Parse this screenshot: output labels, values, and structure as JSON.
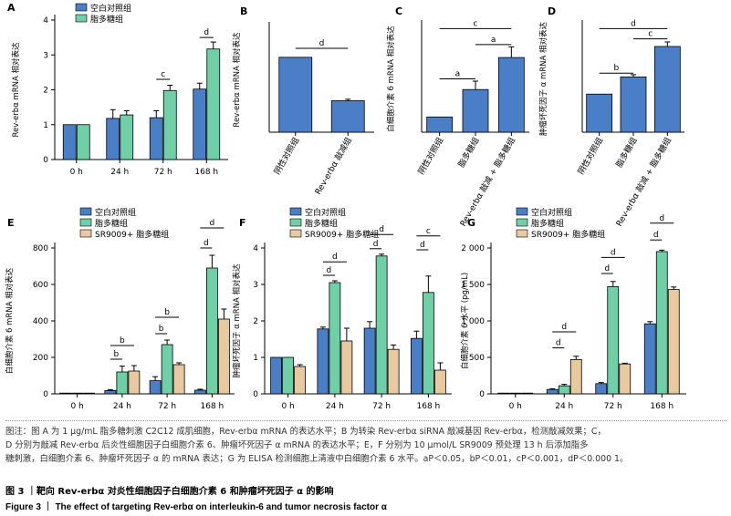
{
  "colors": {
    "blue": "#4a7ec7",
    "green": "#6fd0a8",
    "tan": "#e9c9a0"
  },
  "chart_data": [
    {
      "panel": "A",
      "type": "bar",
      "ylabel": "Rev-erbα mRNA 相对表达",
      "ylim": [
        0,
        4
      ],
      "yticks": [
        "0",
        "1",
        "2",
        "3",
        "4"
      ],
      "categories": [
        "0 h",
        "24 h",
        "72 h",
        "168 h"
      ],
      "series": [
        {
          "name": "空白对照组",
          "color": "#4a7ec7",
          "values": [
            1.0,
            1.18,
            1.2,
            2.02
          ],
          "errors": [
            0,
            0.25,
            0.2,
            0.17
          ]
        },
        {
          "name": "脂多糖组",
          "color": "#6fd0a8",
          "values": [
            1.0,
            1.28,
            1.98,
            3.17
          ],
          "errors": [
            0,
            0.12,
            0.15,
            0.2
          ]
        }
      ],
      "legend": "top-left",
      "annotations": [
        {
          "label": "c",
          "x1": 2,
          "s1": 0,
          "x2": 2,
          "s2": 1,
          "y": 2.3
        },
        {
          "label": "d",
          "x1": 3,
          "s1": 0,
          "x2": 3,
          "s2": 1,
          "y": 3.5
        }
      ]
    },
    {
      "panel": "B",
      "type": "bar",
      "ylabel": "Rev-erbα mRNA 相对表达",
      "ylim": [
        0,
        1.4
      ],
      "categories": [
        "阴性对照组",
        "Rev-erbα 敲减组"
      ],
      "series": [
        {
          "color": "#4a7ec7",
          "values": [
            1.0,
            0.42
          ],
          "errors": [
            0,
            0.02
          ]
        }
      ],
      "annotations": [
        {
          "label": "d",
          "x1": 0,
          "s1": 0,
          "x2": 1,
          "s2": 0,
          "y": 1.12
        }
      ]
    },
    {
      "panel": "C",
      "type": "bar",
      "ylabel": "白细胞介素 6 mRNA 相对表达",
      "ylim": [
        0,
        7
      ],
      "categories": [
        "阴性对照组",
        "脂多糖组",
        "Rev-erbα 敲减 + 脂多糖组"
      ],
      "series": [
        {
          "color": "#4a7ec7",
          "values": [
            1.0,
            2.8,
            4.9
          ],
          "errors": [
            0,
            0.55,
            0.7
          ]
        }
      ],
      "annotations": [
        {
          "label": "a",
          "x1": 0,
          "s1": 0,
          "x2": 1,
          "s2": 0,
          "y": 3.5
        },
        {
          "label": "a",
          "x1": 1,
          "s1": 0,
          "x2": 2,
          "s2": 0,
          "y": 5.75
        },
        {
          "label": "c",
          "x1": 0,
          "s1": 0,
          "x2": 2,
          "s2": 0,
          "y": 6.8
        }
      ]
    },
    {
      "panel": "D",
      "type": "bar",
      "ylabel": "肿瘤坏死因子 α mRNA 相对表达",
      "ylim": [
        0,
        2.8
      ],
      "categories": [
        "阴性对照组",
        "脂多糖组",
        "Rev-erbα 敲减 + 脂多糖组"
      ],
      "series": [
        {
          "color": "#4a7ec7",
          "values": [
            1.0,
            1.45,
            2.25
          ],
          "errors": [
            0,
            0.06,
            0.12
          ]
        }
      ],
      "annotations": [
        {
          "label": "b",
          "x1": 0,
          "s1": 0,
          "x2": 1,
          "s2": 0,
          "y": 1.55
        },
        {
          "label": "c",
          "x1": 1,
          "s1": 0,
          "x2": 2,
          "s2": 0,
          "y": 2.45
        },
        {
          "label": "d",
          "x1": 0,
          "s1": 0,
          "x2": 2,
          "s2": 0,
          "y": 2.72
        }
      ]
    },
    {
      "panel": "E",
      "type": "bar",
      "ylabel": "白细胞介素 6 mRNA 相对表达",
      "ylim": [
        0,
        800
      ],
      "yticks": [
        "0",
        "200",
        "400",
        "600",
        "800"
      ],
      "categories": [
        "0 h",
        "24 h",
        "72 h",
        "168 h"
      ],
      "series": [
        {
          "name": "空白对照组",
          "color": "#4a7ec7",
          "values": [
            1,
            18,
            72,
            20
          ],
          "errors": [
            0,
            5,
            22,
            5
          ]
        },
        {
          "name": "脂多糖组",
          "color": "#6fd0a8",
          "values": [
            1,
            120,
            270,
            690
          ],
          "errors": [
            0,
            32,
            25,
            70
          ]
        },
        {
          "name": "SR9009+ 脂多糖组",
          "color": "#e9c9a0",
          "values": [
            1,
            125,
            160,
            410
          ],
          "errors": [
            0,
            30,
            10,
            55
          ]
        }
      ],
      "legend": "top-left",
      "annotations": [
        {
          "label": "b",
          "x1": 1,
          "s1": 0,
          "x2": 1,
          "s2": 2,
          "y": 265
        },
        {
          "label": "b",
          "x1": 1,
          "s1": 0,
          "x2": 1,
          "s2": 1,
          "y": 190
        },
        {
          "label": "b",
          "x1": 2,
          "s1": 0,
          "x2": 2,
          "s2": 2,
          "y": 420
        },
        {
          "label": "b",
          "x1": 2,
          "s1": 0,
          "x2": 2,
          "s2": 1,
          "y": 330
        },
        {
          "label": "d",
          "x1": 3,
          "s1": 0,
          "x2": 3,
          "s2": 2,
          "y": 910
        },
        {
          "label": "d",
          "x1": 3,
          "s1": 0,
          "x2": 3,
          "s2": 1,
          "y": 800
        }
      ]
    },
    {
      "panel": "F",
      "type": "bar",
      "ylabel": "肿瘤坏死因子 α mRNA 相对表达",
      "ylim": [
        0,
        4
      ],
      "yticks": [
        "0",
        "1",
        "2",
        "3",
        "4"
      ],
      "categories": [
        "0 h",
        "24 h",
        "72 h",
        "168 h"
      ],
      "series": [
        {
          "name": "空白对照组",
          "color": "#4a7ec7",
          "values": [
            1.0,
            1.78,
            1.8,
            1.52
          ],
          "errors": [
            0,
            0.05,
            0.18,
            0.2
          ]
        },
        {
          "name": "脂多糖组",
          "color": "#6fd0a8",
          "values": [
            1.0,
            3.05,
            3.78,
            2.78
          ],
          "errors": [
            0,
            0.05,
            0.05,
            0.45
          ]
        },
        {
          "name": "SR9009+ 脂多糖组",
          "color": "#e9c9a0",
          "values": [
            0.75,
            1.45,
            1.22,
            0.65
          ],
          "errors": [
            0.05,
            0.35,
            0.12,
            0.2
          ]
        }
      ],
      "legend": "top-left",
      "annotations": [
        {
          "label": "d",
          "x1": 1,
          "s1": 0,
          "x2": 1,
          "s2": 2,
          "y": 3.62
        },
        {
          "label": "d",
          "x1": 1,
          "s1": 0,
          "x2": 1,
          "s2": 1,
          "y": 3.25
        },
        {
          "label": "d",
          "x1": 2,
          "s1": 0,
          "x2": 2,
          "s2": 2,
          "y": 4.37
        },
        {
          "label": "d",
          "x1": 2,
          "s1": 0,
          "x2": 2,
          "s2": 1,
          "y": 3.98
        },
        {
          "label": "c",
          "x1": 3,
          "s1": 0,
          "x2": 3,
          "s2": 2,
          "y": 4.33
        },
        {
          "label": "d",
          "x1": 3,
          "s1": 0,
          "x2": 3,
          "s2": 1,
          "y": 3.95
        }
      ]
    },
    {
      "panel": "G",
      "type": "bar",
      "ylabel": "白细胞介素 6 水平 (pg/mL)",
      "ylim": [
        0,
        2000
      ],
      "yticks": [
        "0",
        "500",
        "1 000",
        "1 500",
        "2 000"
      ],
      "categories": [
        "0 h",
        "24 h",
        "72 h",
        "168 h"
      ],
      "series": [
        {
          "name": "空白对照组",
          "color": "#4a7ec7",
          "values": [
            8,
            60,
            140,
            960
          ],
          "errors": [
            0,
            10,
            15,
            30
          ]
        },
        {
          "name": "脂多糖组",
          "color": "#6fd0a8",
          "values": [
            10,
            110,
            1470,
            1950
          ],
          "errors": [
            0,
            20,
            70,
            20
          ]
        },
        {
          "name": "SR9009+ 脂多糖组",
          "color": "#e9c9a0",
          "values": [
            0,
            470,
            410,
            1430
          ],
          "errors": [
            0,
            45,
            10,
            35
          ]
        }
      ],
      "legend": "top-left",
      "annotations": [
        {
          "label": "d",
          "x1": 1,
          "s1": 0,
          "x2": 1,
          "s2": 2,
          "y": 850
        },
        {
          "label": "d",
          "x1": 1,
          "s1": 0,
          "x2": 1,
          "s2": 1,
          "y": 630
        },
        {
          "label": "d",
          "x1": 2,
          "s1": 0,
          "x2": 2,
          "s2": 2,
          "y": 1870
        },
        {
          "label": "d",
          "x1": 2,
          "s1": 0,
          "x2": 2,
          "s2": 1,
          "y": 1650
        },
        {
          "label": "d",
          "x1": 3,
          "s1": 0,
          "x2": 3,
          "s2": 2,
          "y": 2340
        },
        {
          "label": "d",
          "x1": 3,
          "s1": 0,
          "x2": 3,
          "s2": 1,
          "y": 2110
        }
      ]
    }
  ],
  "note_lines": [
    "图注：图 A 为 1 μg/mL 脂多糖刺激 C2C12 成肌细胞，Rev-erbα mRNA 的表达水平；B 为转染 Rev-erbα siRNA 敲减基因 Rev-erbα，检测敲减效果；C，",
    "D 分别为敲减 Rev-erbα 后炎性细胞因子白细胞介素 6、肿瘤坏死因子 α mRNA 的表达水平；E，F 分别为 10 μmol/L SR9009 预处理 13 h 后添加脂多",
    "糖刺激，白细胞介素 6、肿瘤坏死因子 α 的 mRNA 表达；G 为 ELISA 检测细胞上清液中白细胞介素 6 水平。aP＜0.05，bP＜0.01，cP＜0.001，dP＜0.000 1。"
  ],
  "caption_cn": "图 3 ｜靶向 Rev-erbα 对炎性细胞因子白细胞介素 6 和肿瘤坏死因子 α 的影响",
  "caption_en": "Figure 3 ｜ The effect of targeting Rev-erbα on interleukin-6 and tumor necrosis factor α"
}
